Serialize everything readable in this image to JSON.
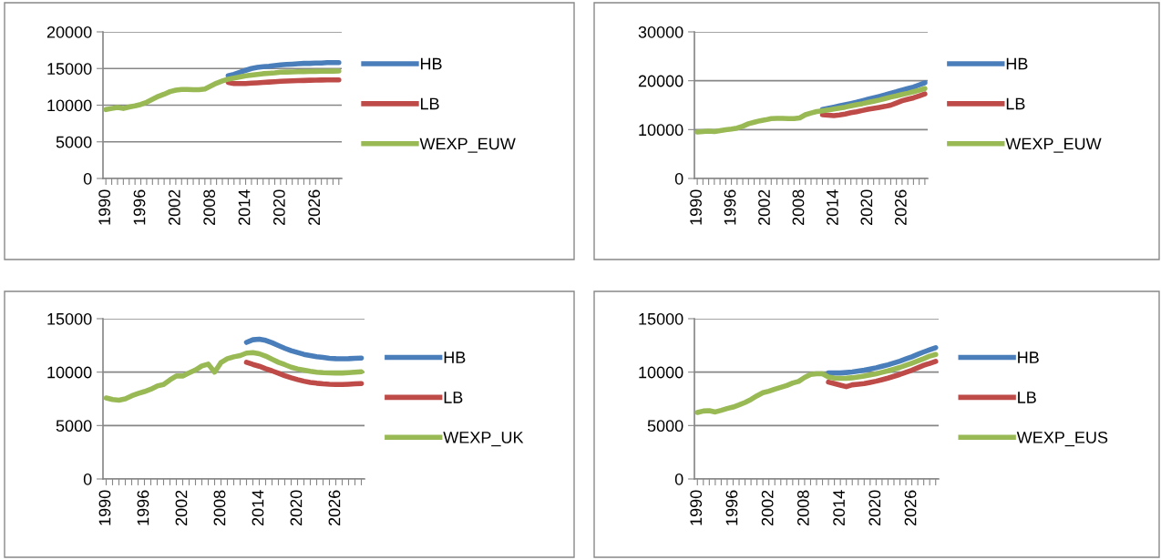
{
  "chart_data": [
    {
      "type": "line",
      "categories": [
        "1990",
        null,
        null,
        null,
        null,
        null,
        "1996",
        null,
        null,
        null,
        null,
        null,
        "2002",
        null,
        null,
        null,
        null,
        null,
        "2008",
        null,
        null,
        null,
        null,
        null,
        "2014",
        null,
        null,
        null,
        null,
        null,
        "2020",
        null,
        null,
        null,
        null,
        null,
        "2026",
        null,
        null,
        null,
        null
      ],
      "ylim": [
        0,
        20000
      ],
      "yticks": [
        0,
        5000,
        10000,
        15000,
        20000
      ],
      "grid": "y",
      "legend": "right",
      "series": [
        {
          "name": "HB",
          "color": "#4a7ebb",
          "values": [
            null,
            null,
            null,
            null,
            null,
            null,
            null,
            null,
            null,
            null,
            null,
            null,
            null,
            null,
            null,
            null,
            null,
            null,
            null,
            null,
            null,
            14000,
            14200,
            14500,
            14750,
            15000,
            15150,
            15250,
            15300,
            15400,
            15500,
            15550,
            15600,
            15650,
            15700,
            15700,
            15750,
            15750,
            15800,
            15800,
            15800
          ]
        },
        {
          "name": "LB",
          "color": "#be4b48",
          "values": [
            null,
            null,
            null,
            null,
            null,
            null,
            null,
            null,
            null,
            null,
            null,
            null,
            null,
            null,
            null,
            null,
            null,
            null,
            null,
            null,
            null,
            13100,
            12950,
            12950,
            12950,
            13000,
            13050,
            13100,
            13150,
            13200,
            13250,
            13300,
            13320,
            13350,
            13370,
            13400,
            13420,
            13430,
            13440,
            13450,
            13450
          ]
        },
        {
          "name": "WEXP_EUW",
          "color": "#98b954",
          "values": [
            9400,
            9550,
            9700,
            9550,
            9750,
            9900,
            10100,
            10400,
            10800,
            11200,
            11500,
            11850,
            12050,
            12150,
            12150,
            12100,
            12100,
            12200,
            12600,
            13000,
            13300,
            13550,
            13700,
            13850,
            14000,
            14100,
            14200,
            14300,
            14350,
            14400,
            14500,
            14520,
            14540,
            14560,
            14580,
            14600,
            14610,
            14620,
            14630,
            14640,
            14650
          ]
        }
      ]
    },
    {
      "type": "line",
      "categories": [
        "1990",
        null,
        null,
        null,
        null,
        null,
        "1996",
        null,
        null,
        null,
        null,
        null,
        "2002",
        null,
        null,
        null,
        null,
        null,
        "2008",
        null,
        null,
        null,
        null,
        null,
        "2014",
        null,
        null,
        null,
        null,
        null,
        "2020",
        null,
        null,
        null,
        null,
        null,
        "2026",
        null,
        null,
        null,
        null
      ],
      "ylim": [
        0,
        30000
      ],
      "yticks": [
        0,
        10000,
        20000,
        30000
      ],
      "grid": "y",
      "legend": "right",
      "series": [
        {
          "name": "HB",
          "color": "#4a7ebb",
          "values": [
            null,
            null,
            null,
            null,
            null,
            null,
            null,
            null,
            null,
            null,
            null,
            null,
            null,
            null,
            null,
            null,
            null,
            null,
            null,
            null,
            null,
            null,
            14100,
            14350,
            14600,
            14850,
            15100,
            15350,
            15600,
            15900,
            16200,
            16500,
            16800,
            17100,
            17450,
            17750,
            18100,
            18400,
            18700,
            19150,
            19600
          ]
        },
        {
          "name": "LB",
          "color": "#be4b48",
          "values": [
            null,
            null,
            null,
            null,
            null,
            null,
            null,
            null,
            null,
            null,
            null,
            null,
            null,
            null,
            null,
            null,
            null,
            null,
            null,
            null,
            null,
            null,
            13050,
            12950,
            12850,
            13000,
            13200,
            13450,
            13650,
            13900,
            14150,
            14350,
            14550,
            14750,
            15000,
            15450,
            15900,
            16200,
            16500,
            16900,
            17300
          ]
        },
        {
          "name": "WEXP_EUW",
          "color": "#98b954",
          "values": [
            9500,
            9600,
            9700,
            9600,
            9800,
            9950,
            10100,
            10300,
            10700,
            11200,
            11500,
            11800,
            12000,
            12250,
            12300,
            12300,
            12250,
            12250,
            12400,
            13050,
            13400,
            13700,
            13850,
            14000,
            14200,
            14400,
            14600,
            14850,
            15100,
            15300,
            15550,
            15800,
            16050,
            16350,
            16650,
            16900,
            17200,
            17450,
            17750,
            18050,
            18400
          ]
        }
      ]
    },
    {
      "type": "line",
      "categories": [
        "1990",
        null,
        null,
        null,
        null,
        null,
        "1996",
        null,
        null,
        null,
        null,
        null,
        "2002",
        null,
        null,
        null,
        null,
        null,
        "2008",
        null,
        null,
        null,
        null,
        null,
        "2014",
        null,
        null,
        null,
        null,
        null,
        "2020",
        null,
        null,
        null,
        null,
        null,
        "2026",
        null,
        null,
        null,
        null
      ],
      "ylim": [
        0,
        15000
      ],
      "yticks": [
        0,
        5000,
        10000,
        15000
      ],
      "grid": "y",
      "legend": "right",
      "series": [
        {
          "name": "HB",
          "color": "#4a7ebb",
          "values": [
            null,
            null,
            null,
            null,
            null,
            null,
            null,
            null,
            null,
            null,
            null,
            null,
            null,
            null,
            null,
            null,
            null,
            null,
            null,
            null,
            null,
            null,
            12780,
            13030,
            13090,
            12970,
            12750,
            12490,
            12230,
            12000,
            11830,
            11660,
            11550,
            11450,
            11380,
            11300,
            11260,
            11250,
            11260,
            11290,
            11320
          ]
        },
        {
          "name": "LB",
          "color": "#be4b48",
          "values": [
            null,
            null,
            null,
            null,
            null,
            null,
            null,
            null,
            null,
            null,
            null,
            null,
            null,
            null,
            null,
            null,
            null,
            null,
            null,
            null,
            null,
            null,
            10920,
            10720,
            10550,
            10320,
            10120,
            9900,
            9670,
            9470,
            9300,
            9150,
            9040,
            8960,
            8900,
            8860,
            8840,
            8840,
            8870,
            8900,
            8930
          ]
        },
        {
          "name": "WEXP_UK",
          "color": "#98b954",
          "values": [
            7580,
            7440,
            7380,
            7500,
            7780,
            8000,
            8180,
            8400,
            8700,
            8840,
            9270,
            9640,
            9640,
            9920,
            10200,
            10580,
            10750,
            10000,
            10900,
            11260,
            11430,
            11550,
            11780,
            11830,
            11720,
            11500,
            11200,
            10920,
            10700,
            10460,
            10300,
            10180,
            10070,
            10000,
            9950,
            9930,
            9920,
            9920,
            9950,
            9990,
            10040
          ]
        }
      ]
    },
    {
      "type": "line",
      "categories": [
        "1990",
        null,
        null,
        null,
        null,
        null,
        "1996",
        null,
        null,
        null,
        null,
        null,
        "2002",
        null,
        null,
        null,
        null,
        null,
        "2008",
        null,
        null,
        null,
        null,
        null,
        "2014",
        null,
        null,
        null,
        null,
        null,
        "2020",
        null,
        null,
        null,
        null,
        null,
        "2026",
        null,
        null,
        null,
        null
      ],
      "ylim": [
        0,
        15000
      ],
      "yticks": [
        0,
        5000,
        10000,
        15000
      ],
      "grid": "y",
      "legend": "right",
      "series": [
        {
          "name": "HB",
          "color": "#4a7ebb",
          "values": [
            null,
            null,
            null,
            null,
            null,
            null,
            null,
            null,
            null,
            null,
            null,
            null,
            null,
            null,
            null,
            null,
            null,
            null,
            null,
            null,
            null,
            null,
            9920,
            9920,
            9920,
            9960,
            10010,
            10090,
            10180,
            10290,
            10410,
            10550,
            10690,
            10860,
            11030,
            11230,
            11430,
            11660,
            11890,
            12090,
            12290
          ]
        },
        {
          "name": "LB",
          "color": "#be4b48",
          "values": [
            null,
            null,
            null,
            null,
            null,
            null,
            null,
            null,
            null,
            null,
            null,
            null,
            null,
            null,
            null,
            null,
            null,
            null,
            null,
            null,
            null,
            null,
            9070,
            8930,
            8780,
            8640,
            8810,
            8870,
            8930,
            9040,
            9150,
            9290,
            9440,
            9610,
            9780,
            9980,
            10180,
            10410,
            10640,
            10820,
            11000
          ]
        },
        {
          "name": "WEXP_EUS",
          "color": "#98b954",
          "values": [
            6220,
            6360,
            6390,
            6270,
            6420,
            6590,
            6730,
            6930,
            7160,
            7440,
            7780,
            8070,
            8210,
            8410,
            8580,
            8750,
            8980,
            9130,
            9500,
            9780,
            9840,
            9840,
            9550,
            9440,
            9410,
            9430,
            9470,
            9550,
            9640,
            9740,
            9840,
            9980,
            10120,
            10280,
            10440,
            10640,
            10840,
            11050,
            11260,
            11500,
            11650
          ]
        }
      ]
    }
  ]
}
